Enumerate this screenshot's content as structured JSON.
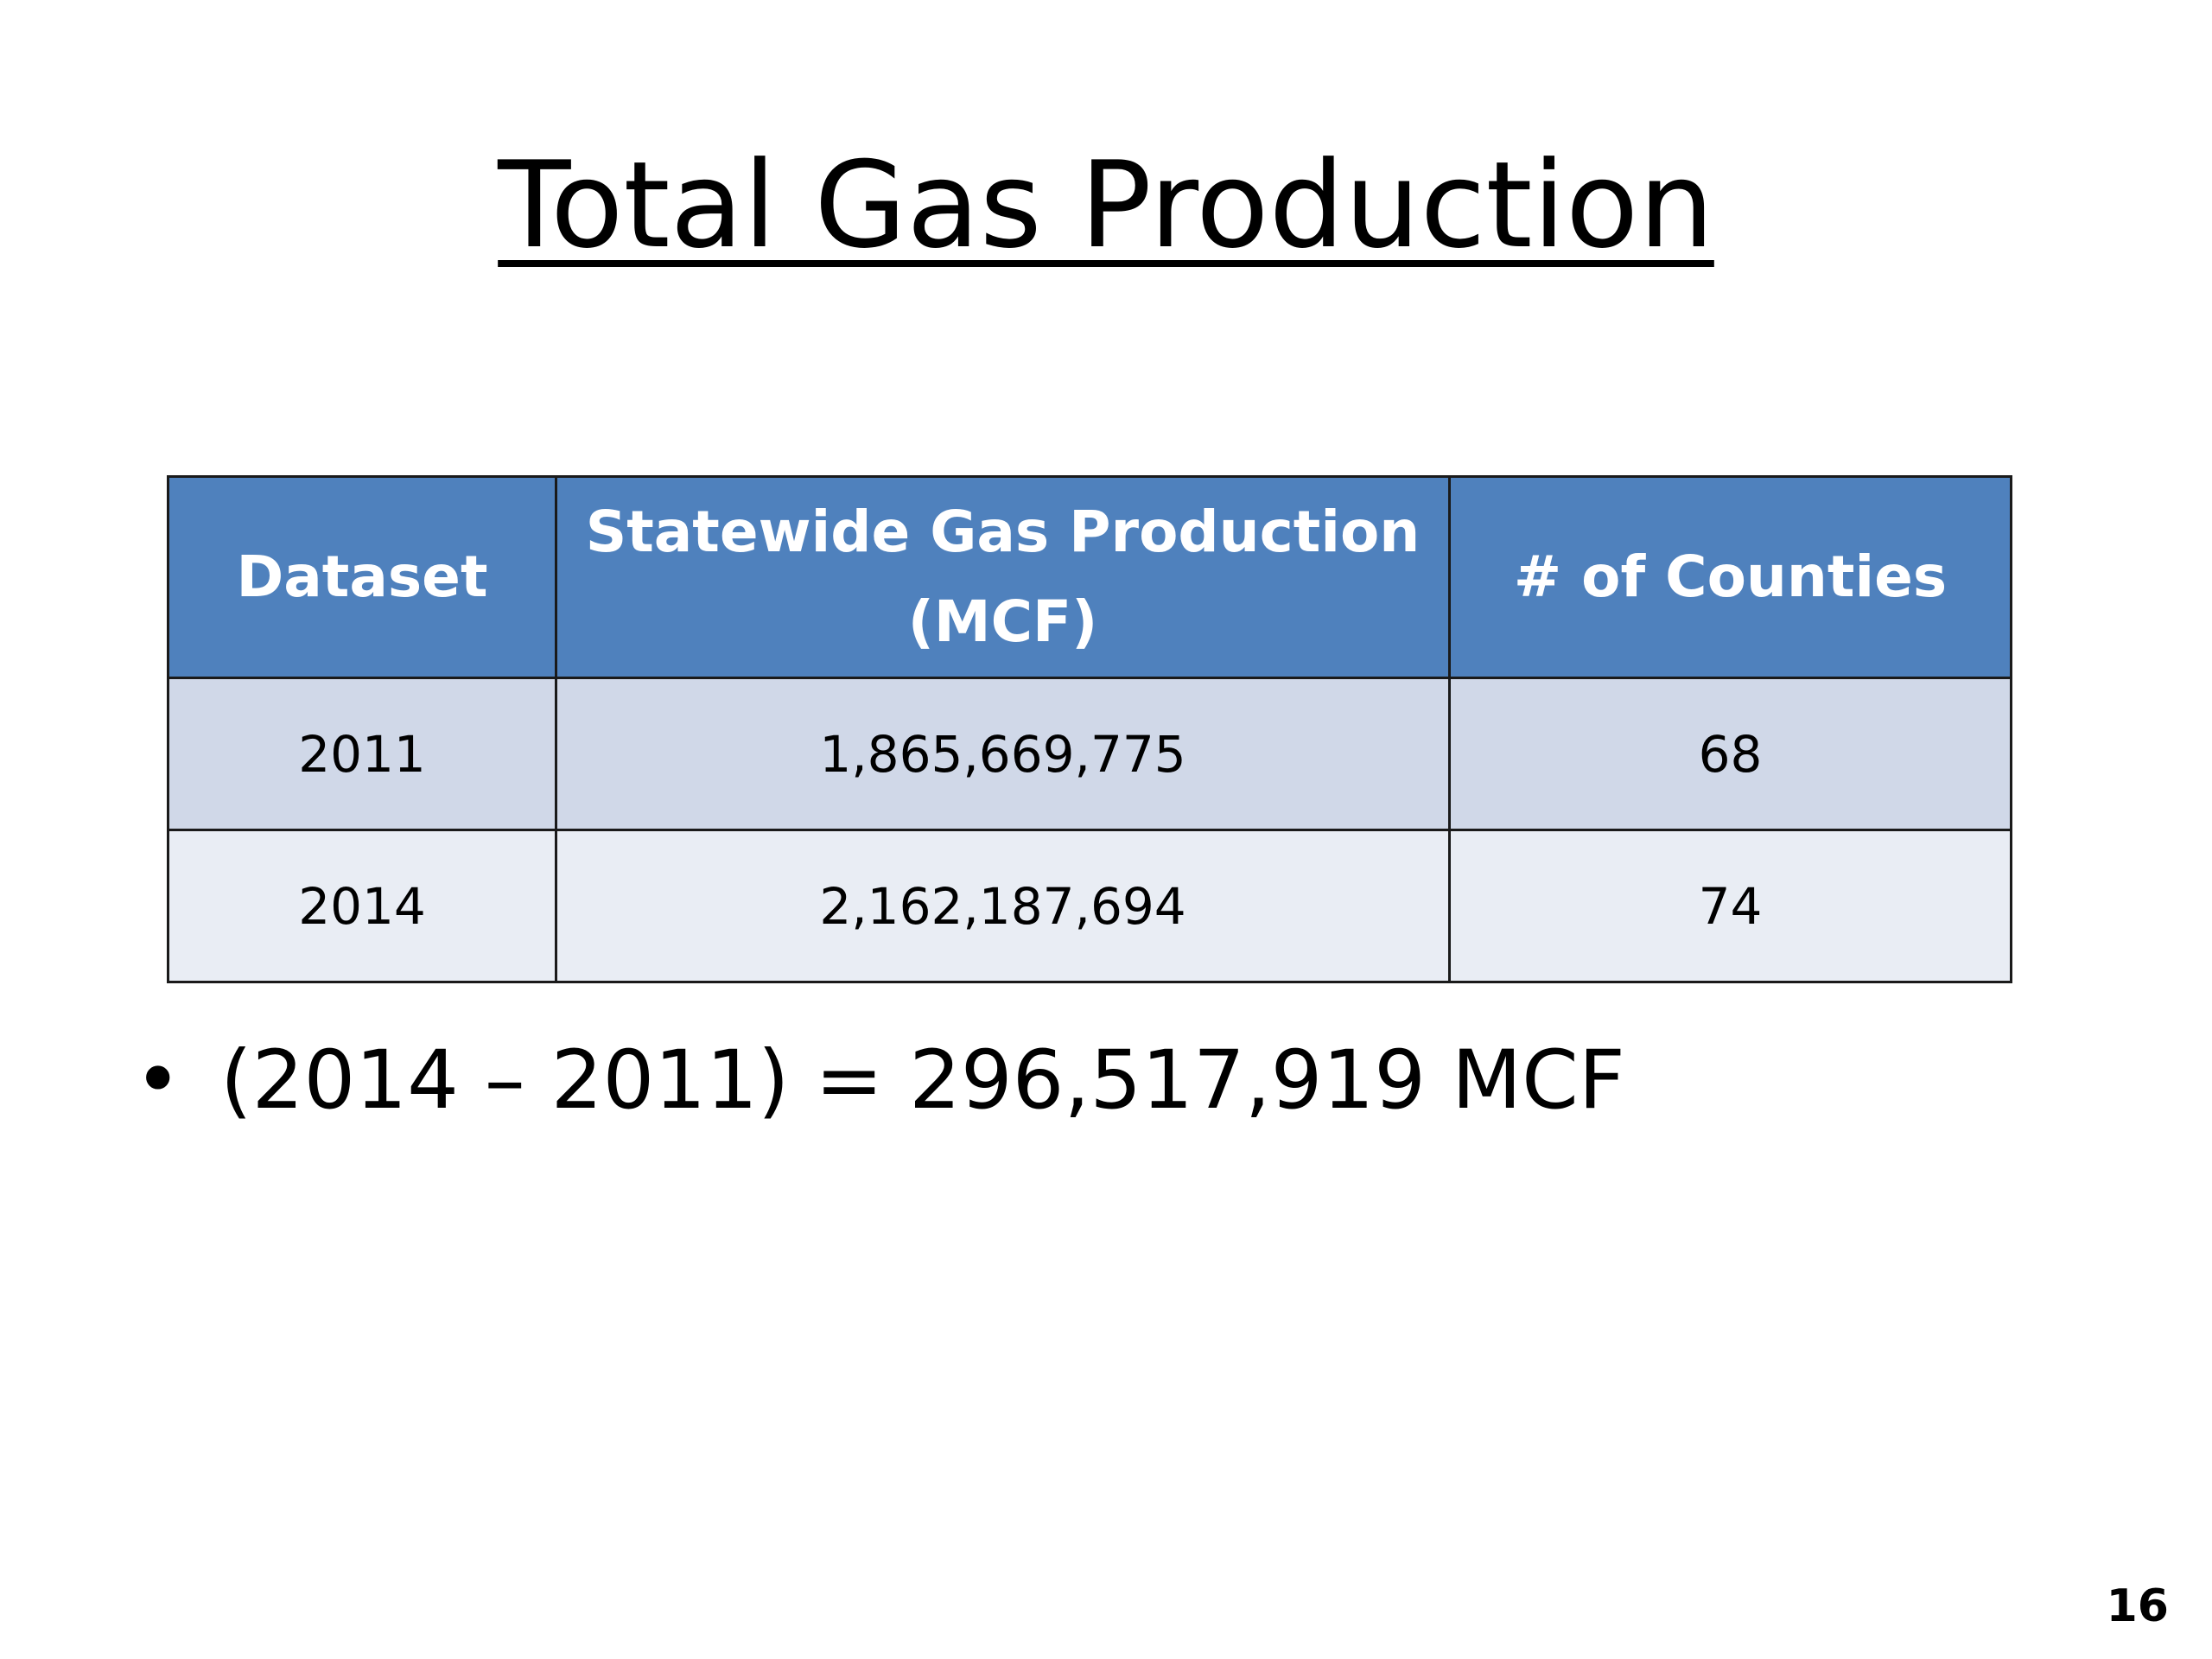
{
  "slide": {
    "title": "Total Gas Production",
    "page_number": "16"
  },
  "table": {
    "headers": [
      "Dataset",
      "Statewide Gas Production (MCF)",
      "# of Counties"
    ],
    "rows": [
      [
        "2011",
        "1,865,669,775",
        "68"
      ],
      [
        "2014",
        "2,162,187,694",
        "74"
      ]
    ]
  },
  "bullets": [
    {
      "marker": "•",
      "text": "(2014 – 2011) = 296,517,919 MCF"
    }
  ],
  "colors": {
    "header_background": "#4f81bd",
    "header_text": "#ffffff",
    "row_band_1": "#d0d8e8",
    "row_band_2": "#e9edf4",
    "border": "#1a1a1a"
  }
}
